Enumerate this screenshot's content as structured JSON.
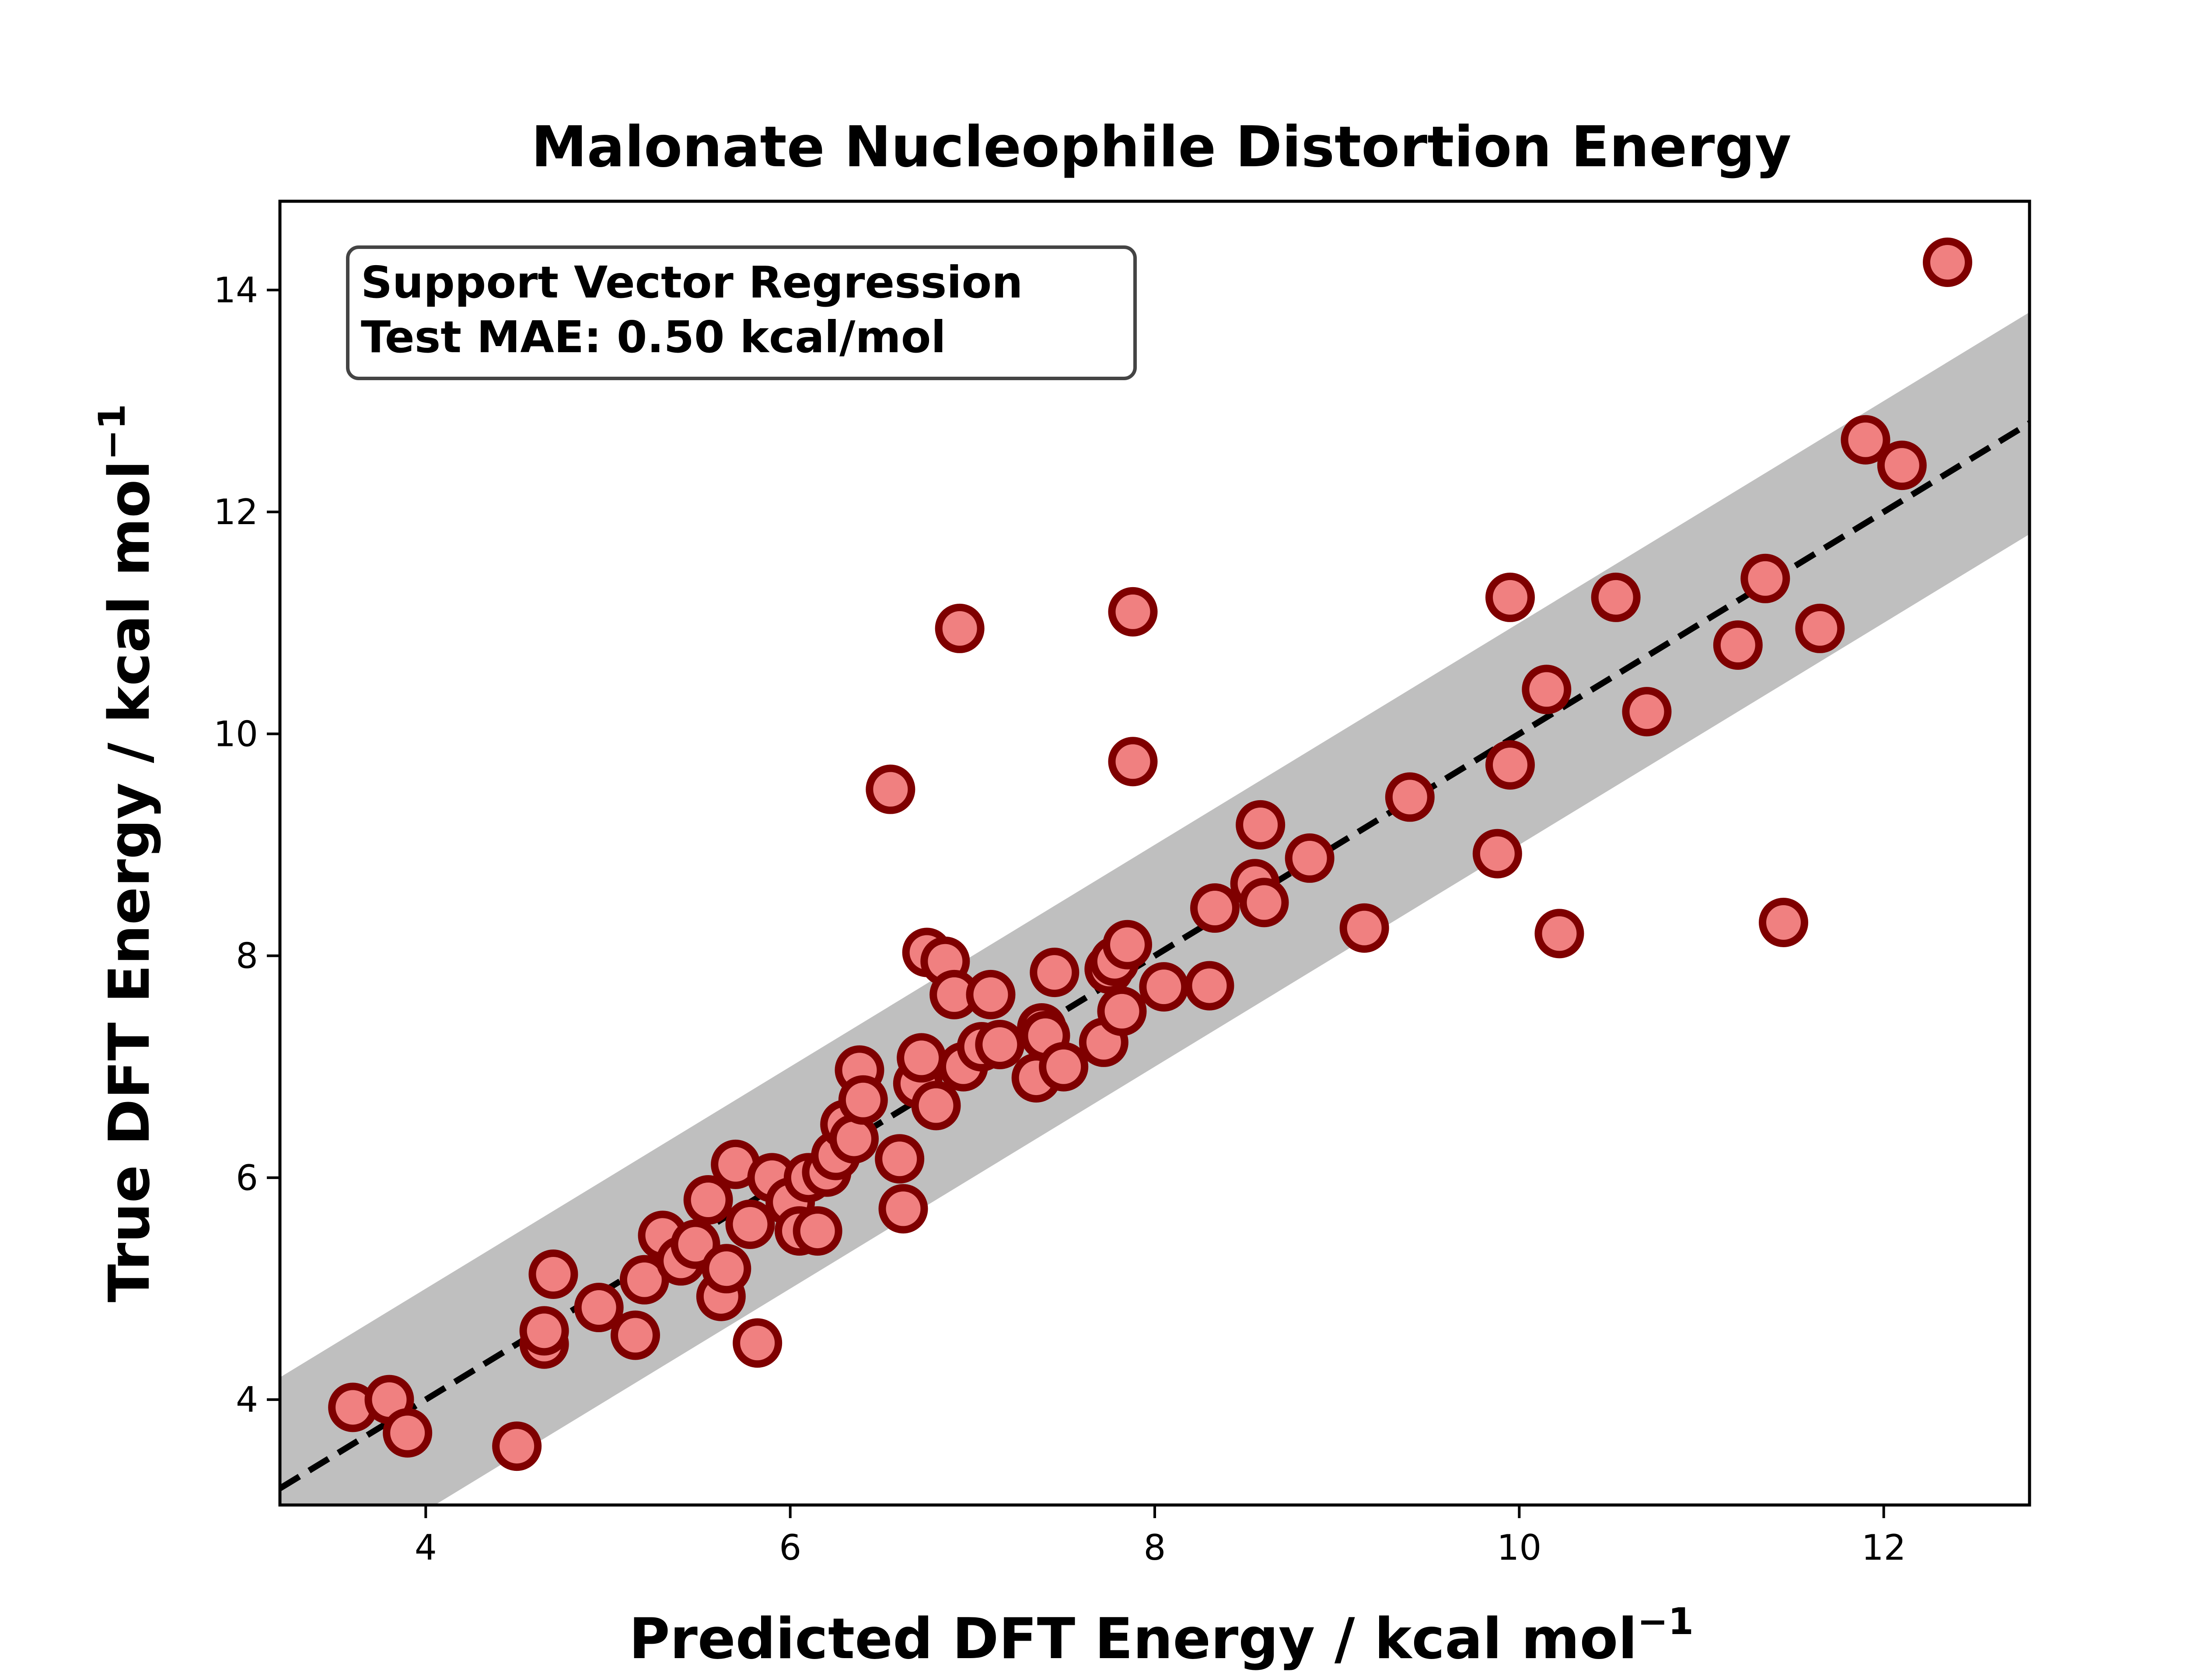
{
  "chart_data": {
    "type": "scatter",
    "title": "Malonate Nucleophile Distortion Energy",
    "xlabel": "Predicted DFT Energy / kcal mol",
    "xlabel_sup": "−1",
    "ylabel": "True DFT Energy / kcal mol",
    "ylabel_sup": "−1",
    "xlim": [
      3.2,
      12.8
    ],
    "ylim": [
      3.05,
      14.8
    ],
    "xticks": [
      4,
      6,
      8,
      10,
      12
    ],
    "yticks": [
      4,
      6,
      8,
      10,
      12,
      14
    ],
    "grid": false,
    "annotation": {
      "line1": "Support Vector Regression",
      "line2": "Test MAE: 0.50 kcal/mol"
    },
    "reference_line": {
      "style": "dashed",
      "slope": 1,
      "intercept": 0,
      "color": "#000000"
    },
    "error_band": {
      "halfwidth": 1.0,
      "color": "#bfbfbf"
    },
    "marker": {
      "fill": "#f08080",
      "edge": "#7f0000"
    },
    "points": [
      [
        3.6,
        3.93
      ],
      [
        3.8,
        4.0
      ],
      [
        3.9,
        3.7
      ],
      [
        4.5,
        3.58
      ],
      [
        4.65,
        4.5
      ],
      [
        4.65,
        4.62
      ],
      [
        4.7,
        5.13
      ],
      [
        4.95,
        4.83
      ],
      [
        5.15,
        4.58
      ],
      [
        5.2,
        5.08
      ],
      [
        5.3,
        5.48
      ],
      [
        5.4,
        5.25
      ],
      [
        5.48,
        5.4
      ],
      [
        5.55,
        5.8
      ],
      [
        5.62,
        4.93
      ],
      [
        5.65,
        5.18
      ],
      [
        5.7,
        6.12
      ],
      [
        5.78,
        5.58
      ],
      [
        5.82,
        4.51
      ],
      [
        5.9,
        6.0
      ],
      [
        6.0,
        5.78
      ],
      [
        6.05,
        5.52
      ],
      [
        6.1,
        6.0
      ],
      [
        6.15,
        5.52
      ],
      [
        6.2,
        6.05
      ],
      [
        6.25,
        6.2
      ],
      [
        6.3,
        6.48
      ],
      [
        6.35,
        6.35
      ],
      [
        6.38,
        6.97
      ],
      [
        6.4,
        6.7
      ],
      [
        6.55,
        9.5
      ],
      [
        6.6,
        6.17
      ],
      [
        6.62,
        5.72
      ],
      [
        6.7,
        6.85
      ],
      [
        6.72,
        7.08
      ],
      [
        6.75,
        8.03
      ],
      [
        6.8,
        6.65
      ],
      [
        6.85,
        7.95
      ],
      [
        6.9,
        7.65
      ],
      [
        6.93,
        10.95
      ],
      [
        6.95,
        7.0
      ],
      [
        7.05,
        7.18
      ],
      [
        7.1,
        7.65
      ],
      [
        7.15,
        7.2
      ],
      [
        7.35,
        6.9
      ],
      [
        7.38,
        7.35
      ],
      [
        7.4,
        7.28
      ],
      [
        7.45,
        7.85
      ],
      [
        7.5,
        7.0
      ],
      [
        7.72,
        7.22
      ],
      [
        7.75,
        7.88
      ],
      [
        7.78,
        7.95
      ],
      [
        7.82,
        7.5
      ],
      [
        7.85,
        8.1
      ],
      [
        7.88,
        9.75
      ],
      [
        7.88,
        11.1
      ],
      [
        8.05,
        7.72
      ],
      [
        8.3,
        7.73
      ],
      [
        8.33,
        8.43
      ],
      [
        8.55,
        8.65
      ],
      [
        8.58,
        9.18
      ],
      [
        8.6,
        8.48
      ],
      [
        8.85,
        8.88
      ],
      [
        9.15,
        8.25
      ],
      [
        9.4,
        9.43
      ],
      [
        9.88,
        8.92
      ],
      [
        9.95,
        11.23
      ],
      [
        9.95,
        9.72
      ],
      [
        10.15,
        10.4
      ],
      [
        10.22,
        8.2
      ],
      [
        10.53,
        11.23
      ],
      [
        10.7,
        10.2
      ],
      [
        11.2,
        10.8
      ],
      [
        11.35,
        11.4
      ],
      [
        11.45,
        8.3
      ],
      [
        11.65,
        10.95
      ],
      [
        11.9,
        12.65
      ],
      [
        12.1,
        12.42
      ],
      [
        12.35,
        14.25
      ]
    ]
  }
}
